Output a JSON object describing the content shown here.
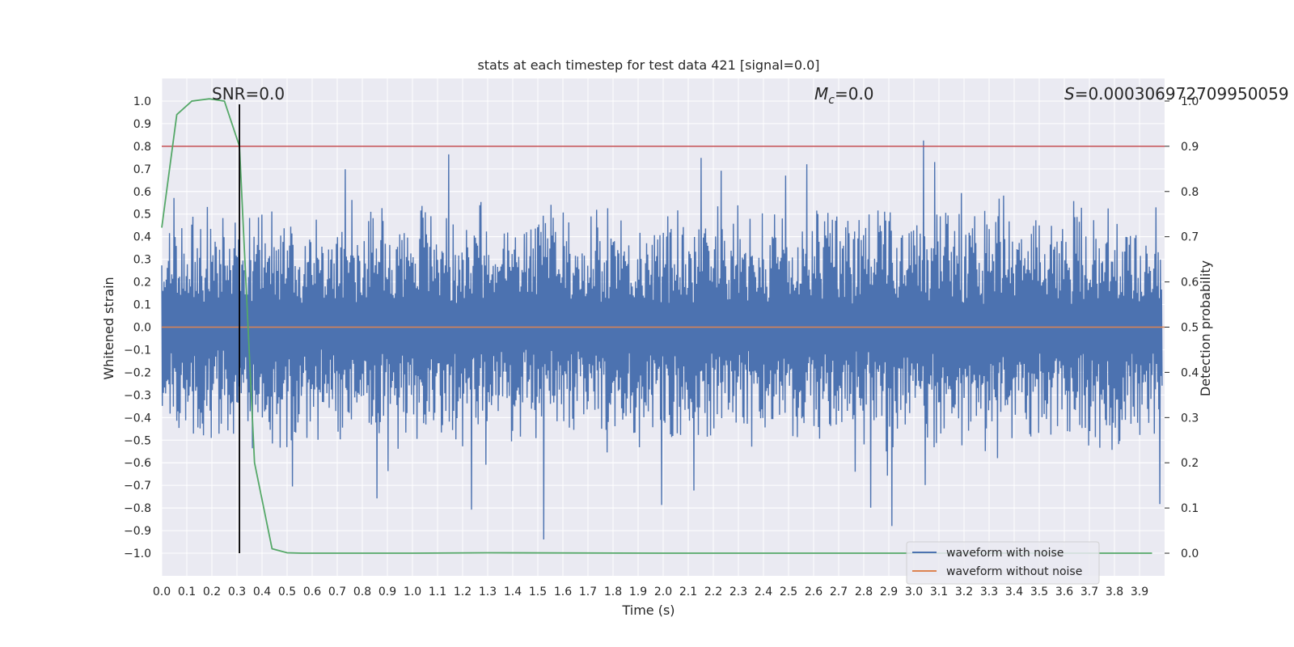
{
  "chart_data": {
    "type": "line",
    "title": "stats at each timestep for test data 421 [signal=0.0]",
    "xlabel": "Time (s)",
    "ylabel": "Whitened strain",
    "ylabel_right": "Detection probability",
    "xlim": [
      0.0,
      4.0
    ],
    "ylim": [
      -1.1,
      1.1
    ],
    "ylim_right": [
      -0.05,
      1.05
    ],
    "x_ticks": [
      "0.0",
      "0.1",
      "0.2",
      "0.3",
      "0.4",
      "0.5",
      "0.6",
      "0.7",
      "0.8",
      "0.9",
      "1.0",
      "1.1",
      "1.2",
      "1.3",
      "1.4",
      "1.5",
      "1.6",
      "1.7",
      "1.8",
      "1.9",
      "2.0",
      "2.1",
      "2.2",
      "2.3",
      "2.4",
      "2.5",
      "2.6",
      "2.7",
      "2.8",
      "2.9",
      "3.0",
      "3.1",
      "3.2",
      "3.3",
      "3.4",
      "3.5",
      "3.6",
      "3.7",
      "3.8",
      "3.9"
    ],
    "y_ticks": [
      "1.0",
      "0.9",
      "0.8",
      "0.7",
      "0.6",
      "0.5",
      "0.4",
      "0.3",
      "0.2",
      "0.1",
      "0.0",
      "−0.1",
      "−0.2",
      "−0.3",
      "−0.4",
      "−0.5",
      "−0.6",
      "−0.7",
      "−0.8",
      "−0.9",
      "−1.0"
    ],
    "y_right_ticks": [
      "1.0",
      "0.9",
      "0.8",
      "0.7",
      "0.6",
      "0.5",
      "0.4",
      "0.3",
      "0.2",
      "0.1",
      "0.0"
    ],
    "annotations": {
      "snr": "SNR=0.0",
      "mc_symbol": "M",
      "mc_subscript": "c",
      "mc_value": "=0.0",
      "s_symbol": "S",
      "s_value": "=0.000306972709950059"
    },
    "legend": [
      "waveform with noise",
      "waveform without noise"
    ],
    "series": [
      {
        "name": "waveform with noise",
        "color": "#4c72b0",
        "kind": "noise",
        "amplitude_typical": 0.45,
        "amplitude_peak": 1.0
      },
      {
        "name": "waveform without noise",
        "color": "#dd8452",
        "values_constant": 0.0
      },
      {
        "name": "detection probability",
        "color": "#55a868",
        "axis": "right",
        "x": [
          0.0,
          0.06,
          0.12,
          0.19,
          0.25,
          0.31,
          0.37,
          0.44,
          0.5,
          0.56,
          1.0,
          1.3,
          2.0,
          3.0,
          3.95
        ],
        "values": [
          0.72,
          0.97,
          1.0,
          1.005,
          1.0,
          0.9,
          0.2,
          0.01,
          0.001,
          0.0,
          0.0,
          0.001,
          0.0,
          0.0,
          0.0
        ]
      },
      {
        "name": "threshold",
        "color": "#c44e52",
        "axis": "right",
        "value": 0.9
      },
      {
        "name": "marker",
        "color": "#000000",
        "x": 0.31,
        "y_range": [
          -1.0,
          1.0
        ]
      }
    ],
    "background": "#eaeaf2",
    "grid_color": "#ffffff"
  }
}
